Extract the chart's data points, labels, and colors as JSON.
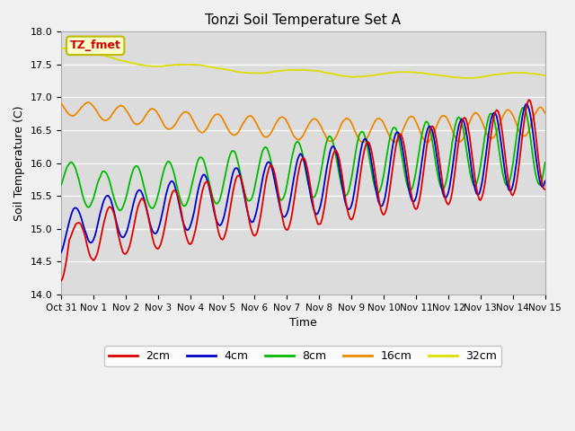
{
  "title": "Tonzi Soil Temperature Set A",
  "xlabel": "Time",
  "ylabel": "Soil Temperature (C)",
  "ylim": [
    14.0,
    18.0
  ],
  "yticks": [
    14.0,
    14.5,
    15.0,
    15.5,
    16.0,
    16.5,
    17.0,
    17.5,
    18.0
  ],
  "annotation_text": "TZ_fmet",
  "annotation_color": "#cc0000",
  "annotation_bg": "#ffffcc",
  "annotation_edge": "#bbbb00",
  "series_colors": {
    "2cm": "#dd0000",
    "4cm": "#0000cc",
    "8cm": "#00bb00",
    "16cm": "#ee8800",
    "32cm": "#dddd00"
  },
  "tick_days": [
    0,
    1,
    2,
    3,
    4,
    5,
    6,
    7,
    8,
    9,
    10,
    11,
    12,
    13,
    14,
    15
  ],
  "tick_labels": [
    "Oct 31",
    "Nov 1",
    "Nov 2",
    "Nov 3",
    "Nov 4",
    "Nov 5",
    "Nov 6",
    "Nov 7",
    "Nov 8",
    "Nov 9",
    "Nov 10",
    "Nov 11",
    "Nov 12",
    "Nov 13",
    "Nov 14",
    "Nov 15"
  ]
}
